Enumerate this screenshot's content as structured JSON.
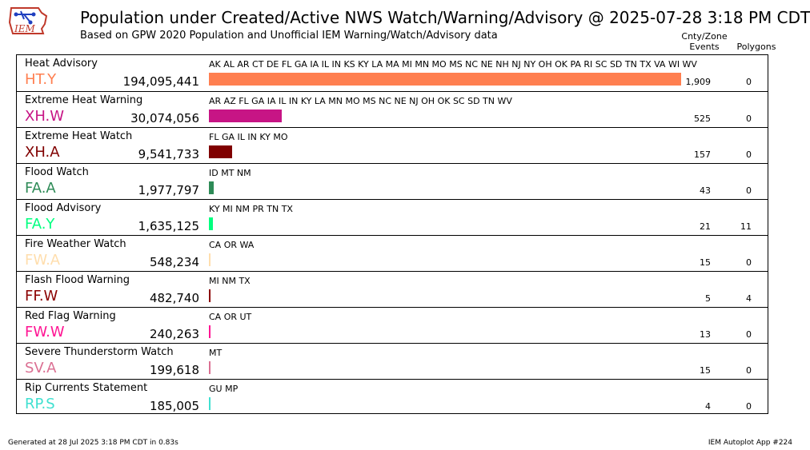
{
  "header": {
    "title": "Population under Created/Active NWS Watch/Warning/Advisory @ 2025-07-28 3:18 PM CDT",
    "subtitle": "Based on GPW 2020 Population and Unofficial IEM Warning/Watch/Advisory data",
    "col_events_line1": "Cnty/Zone",
    "col_events_line2": "Events",
    "col_polygons": "Polygons"
  },
  "logo": {
    "text": "IEM"
  },
  "footer": {
    "generated": "Generated at 28 Jul 2025 3:18 PM CDT in 0.83s",
    "app": "IEM Autoplot App #224"
  },
  "chart_data": {
    "type": "bar",
    "orientation": "horizontal",
    "max_value": 194095441,
    "rows": [
      {
        "name": "Heat Advisory",
        "code": "HT.Y",
        "population": 194095441,
        "population_label": "194,095,441",
        "states": "AK AL AR CT DE FL GA IA IL IN KS KY LA MA MI MN MO MS NC NE NH NJ NY OH OK PA RI SC SD TN TX VA WI WV",
        "events": "1,909",
        "polygons": "0",
        "color": "#FF7F50"
      },
      {
        "name": "Extreme Heat Warning",
        "code": "XH.W",
        "population": 30074056,
        "population_label": "30,074,056",
        "states": "AR AZ FL GA IA IL IN KY LA MN MO MS NC NE NJ OH OK SC SD TN WV",
        "events": "525",
        "polygons": "0",
        "color": "#C71585"
      },
      {
        "name": "Extreme Heat Watch",
        "code": "XH.A",
        "population": 9541733,
        "population_label": "9,541,733",
        "states": "FL GA IL IN KY MO",
        "events": "157",
        "polygons": "0",
        "color": "#800000"
      },
      {
        "name": "Flood Watch",
        "code": "FA.A",
        "population": 1977797,
        "population_label": "1,977,797",
        "states": "ID MT NM",
        "events": "43",
        "polygons": "0",
        "color": "#2E8B57"
      },
      {
        "name": "Flood Advisory",
        "code": "FA.Y",
        "population": 1635125,
        "population_label": "1,635,125",
        "states": "KY MI NM PR TN TX",
        "events": "21",
        "polygons": "11",
        "color": "#00FF7F"
      },
      {
        "name": "Fire Weather Watch",
        "code": "FW.A",
        "population": 548234,
        "population_label": "548,234",
        "states": "CA OR WA",
        "events": "15",
        "polygons": "0",
        "color": "#FFDEAD"
      },
      {
        "name": "Flash Flood Warning",
        "code": "FF.W",
        "population": 482740,
        "population_label": "482,740",
        "states": "MI NM TX",
        "events": "5",
        "polygons": "4",
        "color": "#8B0000"
      },
      {
        "name": "Red Flag Warning",
        "code": "FW.W",
        "population": 240263,
        "population_label": "240,263",
        "states": "CA OR UT",
        "events": "13",
        "polygons": "0",
        "color": "#FF1493"
      },
      {
        "name": "Severe Thunderstorm Watch",
        "code": "SV.A",
        "population": 199618,
        "population_label": "199,618",
        "states": "MT",
        "events": "15",
        "polygons": "0",
        "color": "#DB7093"
      },
      {
        "name": "Rip Currents Statement",
        "code": "RP.S",
        "population": 185005,
        "population_label": "185,005",
        "states": "GU MP",
        "events": "4",
        "polygons": "0",
        "color": "#40E0D0"
      }
    ]
  }
}
